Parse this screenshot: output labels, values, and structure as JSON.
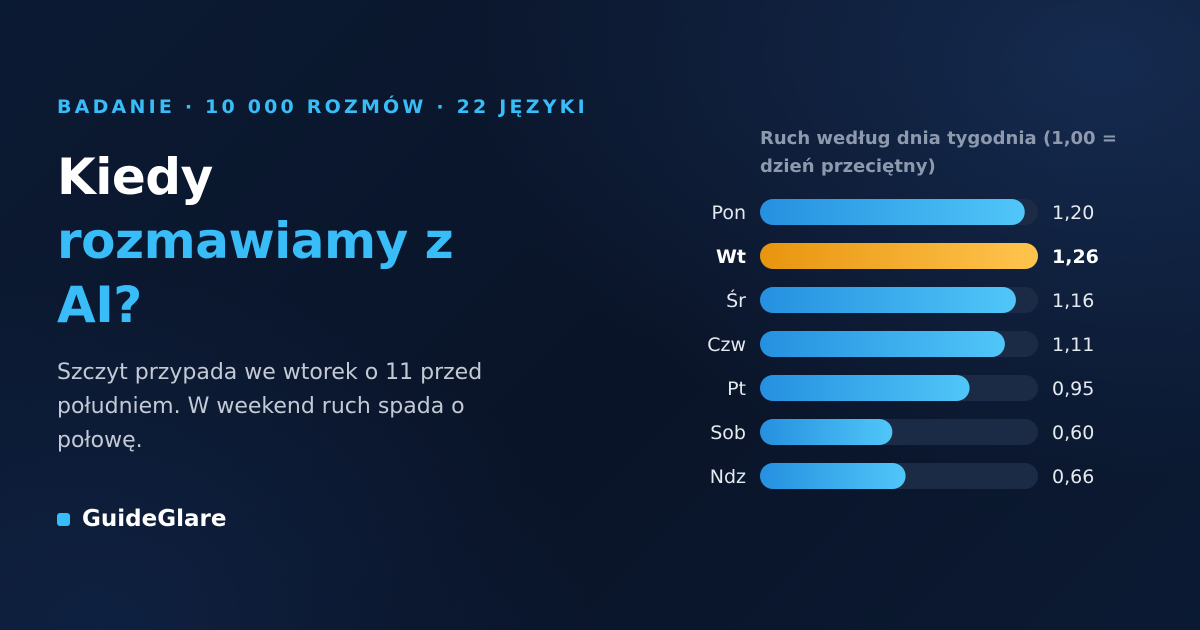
{
  "header": {
    "eyebrow": "BADANIE · 10 000 ROZMÓW · 22 JĘZYKI",
    "title_line1": "Kiedy",
    "title_line2": "rozmawiamy z AI?",
    "lede": "Szczyt przypada we wtorek o 11 przed południem. W weekend ruch spada o połowę."
  },
  "brand": {
    "name": "GuideGlare",
    "mark_icon": "square-icon"
  },
  "colors": {
    "accent": "#38bdf8",
    "bar_start": "#2590e0",
    "bar_end": "#50c6f8",
    "highlight_start": "#e8950e",
    "highlight_end": "#ffc44e",
    "track": "#1b2a45"
  },
  "chart_data": {
    "type": "bar",
    "orientation": "horizontal",
    "title": "Ruch według dnia tygodnia (1,00 = dzień przeciętny)",
    "categories": [
      "Pon",
      "Wt",
      "Śr",
      "Czw",
      "Pt",
      "Sob",
      "Ndz"
    ],
    "values": [
      1.2,
      1.26,
      1.16,
      1.11,
      0.95,
      0.6,
      0.66
    ],
    "value_labels": [
      "1,20",
      "1,26",
      "1,16",
      "1,11",
      "0,95",
      "0,60",
      "0,66"
    ],
    "highlight": "Wt",
    "xlim": [
      0,
      1.26
    ],
    "grid": false,
    "legend": "none"
  }
}
